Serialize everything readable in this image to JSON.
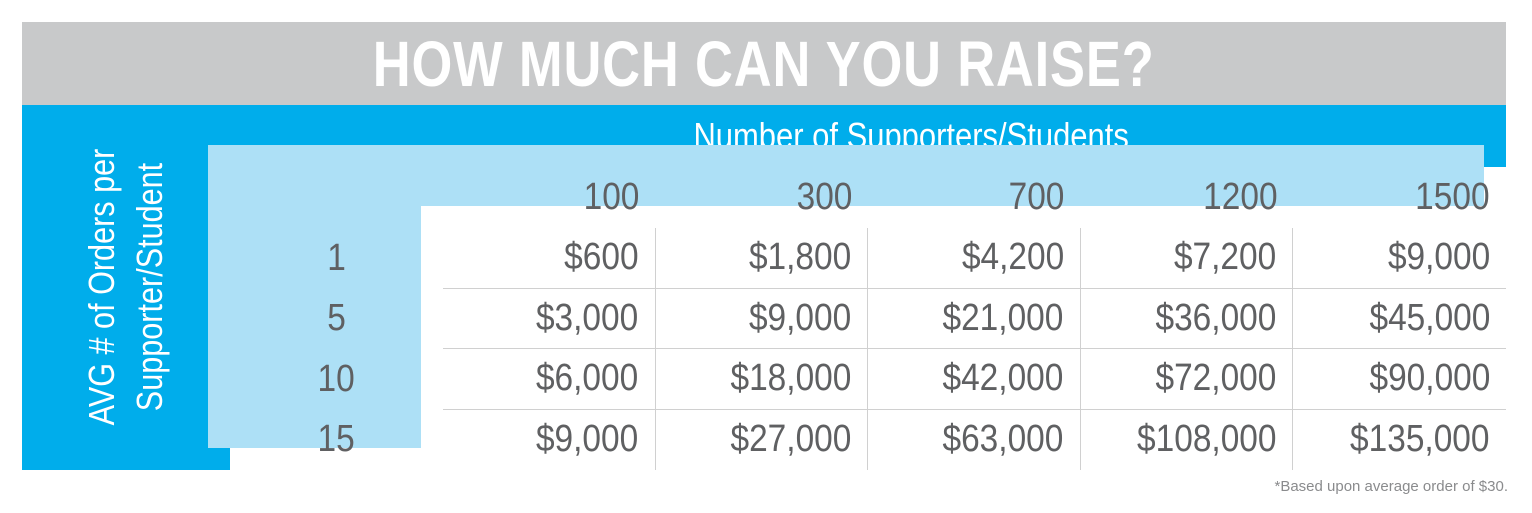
{
  "title": "HOW MUCH CAN YOU RAISE?",
  "colors": {
    "title_bar": "#c8c9ca",
    "accent_blue": "#00adeb",
    "light_blue": "#ade0f6",
    "text_gray": "#5f6062"
  },
  "chart_data": {
    "type": "table",
    "title": "HOW MUCH CAN YOU RAISE?",
    "column_axis_label": "Number of Supporters/Students",
    "row_axis_label": [
      "AVG # of Orders per",
      "Supporter/Student"
    ],
    "columns": [
      "100",
      "300",
      "700",
      "1200",
      "1500"
    ],
    "rows": [
      "1",
      "5",
      "10",
      "15"
    ],
    "cells": [
      [
        "$600",
        "$1,800",
        "$4,200",
        "$7,200",
        "$9,000"
      ],
      [
        "$3,000",
        "$9,000",
        "$21,000",
        "$36,000",
        "$45,000"
      ],
      [
        "$6,000",
        "$18,000",
        "$42,000",
        "$72,000",
        "$90,000"
      ],
      [
        "$9,000",
        "$27,000",
        "$63,000",
        "$108,000",
        "$135,000"
      ]
    ]
  },
  "footnote": "*Based upon average order of $30."
}
